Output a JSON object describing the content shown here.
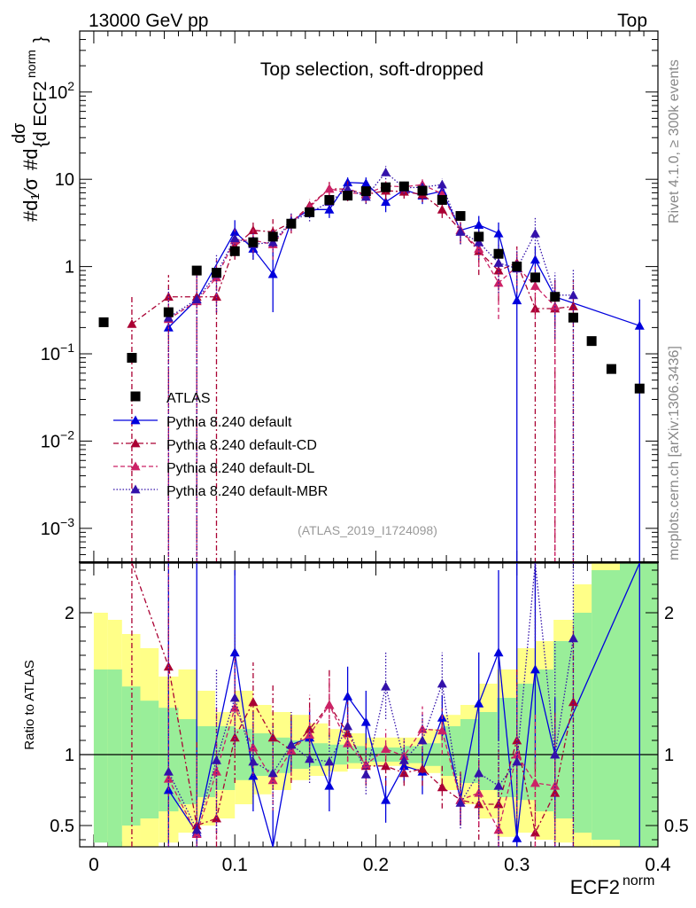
{
  "header": {
    "left": "13000 GeV pp",
    "right": "Top",
    "side_top": "Rivet 4.1.0, ≥ 300k events",
    "side_bottom": "mcplots.cern.ch [arXiv:1306.3436]"
  },
  "chart_data": {
    "type": "scatter",
    "title": "Top selection, soft-dropped",
    "watermark": "(ATLAS_2019_I1724098)",
    "xlabel_base": "ECF2",
    "xlabel_sup": "norm",
    "ylabel_frac": "#d₁∕σ",
    "ylabel_main": "#d",
    "ylabel_numer": "dσ",
    "ylabel_denom": "{d ECF2",
    "ylabel_sup": "norm",
    "ylabel_brace": "}",
    "ratio_ylabel": "Ratio to ATLAS",
    "xlim": [
      -0.01,
      0.4
    ],
    "ylim_main": [
      0.0004,
      500
    ],
    "ylim_ratio": [
      0.35,
      2.35
    ],
    "x_ticks": [
      "0",
      "0.1",
      "0.2",
      "0.3",
      "0.4"
    ],
    "x_tick_values": [
      0,
      0.1,
      0.2,
      0.3,
      0.4
    ],
    "y_ticks_main": [
      {
        "v": 0.001,
        "base": "10",
        "exp": "−3"
      },
      {
        "v": 0.01,
        "base": "10",
        "exp": "−2"
      },
      {
        "v": 0.1,
        "base": "10",
        "exp": "−1"
      },
      {
        "v": 1,
        "base": "1",
        "exp": ""
      },
      {
        "v": 10,
        "base": "10",
        "exp": ""
      },
      {
        "v": 100,
        "base": "10",
        "exp": "2"
      }
    ],
    "y_ticks_ratio": [
      {
        "v": 0.5,
        "label": "0.5"
      },
      {
        "v": 1,
        "label": "1"
      },
      {
        "v": 2,
        "label": "2"
      }
    ],
    "legend": [
      {
        "label": "ATLAS"
      },
      {
        "label": "Pythia 8.240 default"
      },
      {
        "label": "Pythia 8.240 default-CD"
      },
      {
        "label": "Pythia 8.240 default-DL"
      },
      {
        "label": "Pythia 8.240 default-MBR"
      }
    ],
    "band_edges": [
      0,
      0.01,
      0.02,
      0.033,
      0.046,
      0.06,
      0.073,
      0.086,
      0.1,
      0.113,
      0.126,
      0.14,
      0.153,
      0.166,
      0.18,
      0.193,
      0.206,
      0.22,
      0.233,
      0.246,
      0.26,
      0.273,
      0.286,
      0.3,
      0.313,
      0.326,
      0.34,
      0.353,
      0.373,
      0.4
    ],
    "band_yellow": [
      [
        0.4,
        2.0
      ],
      [
        0.35,
        1.95
      ],
      [
        0.35,
        1.85
      ],
      [
        0.35,
        1.75
      ],
      [
        0.38,
        1.55
      ],
      [
        0.45,
        1.6
      ],
      [
        0.5,
        1.45
      ],
      [
        0.55,
        1.3
      ],
      [
        0.65,
        1.45
      ],
      [
        0.72,
        1.35
      ],
      [
        0.75,
        1.3
      ],
      [
        0.82,
        1.28
      ],
      [
        0.85,
        1.22
      ],
      [
        0.88,
        1.18
      ],
      [
        0.9,
        1.15
      ],
      [
        0.92,
        1.12
      ],
      [
        0.92,
        1.12
      ],
      [
        0.9,
        1.12
      ],
      [
        0.87,
        1.18
      ],
      [
        0.75,
        1.28
      ],
      [
        0.65,
        1.35
      ],
      [
        0.55,
        1.5
      ],
      [
        0.42,
        1.6
      ],
      [
        0.45,
        1.75
      ],
      [
        0.4,
        1.8
      ],
      [
        0.38,
        1.95
      ],
      [
        0.35,
        2.2
      ],
      [
        0.35,
        2.35
      ],
      [
        0.35,
        2.35
      ]
    ],
    "band_green": [
      [
        0.38,
        1.6
      ],
      [
        0.35,
        1.6
      ],
      [
        0.5,
        1.48
      ],
      [
        0.55,
        1.38
      ],
      [
        0.6,
        1.33
      ],
      [
        0.65,
        1.25
      ],
      [
        0.7,
        1.2
      ],
      [
        0.75,
        1.2
      ],
      [
        0.82,
        1.18
      ],
      [
        0.85,
        1.15
      ],
      [
        0.87,
        1.12
      ],
      [
        0.9,
        1.1
      ],
      [
        0.92,
        1.08
      ],
      [
        0.93,
        1.07
      ],
      [
        0.94,
        1.06
      ],
      [
        0.95,
        1.05
      ],
      [
        0.95,
        1.05
      ],
      [
        0.94,
        1.06
      ],
      [
        0.92,
        1.08
      ],
      [
        0.85,
        1.2
      ],
      [
        0.8,
        1.25
      ],
      [
        0.75,
        1.3
      ],
      [
        0.7,
        1.4
      ],
      [
        0.68,
        1.5
      ],
      [
        0.6,
        1.6
      ],
      [
        0.55,
        1.8
      ],
      [
        0.45,
        2.0
      ],
      [
        0.4,
        2.3
      ],
      [
        0.35,
        2.35
      ]
    ],
    "atlas": {
      "name": "ATLAS",
      "x": [
        0.007,
        0.027,
        0.053,
        0.073,
        0.087,
        0.1,
        0.113,
        0.127,
        0.14,
        0.153,
        0.167,
        0.18,
        0.193,
        0.207,
        0.22,
        0.233,
        0.247,
        0.26,
        0.273,
        0.287,
        0.3,
        0.313,
        0.327,
        0.34,
        0.353,
        0.367,
        0.387
      ],
      "y": [
        0.23,
        0.09,
        0.3,
        0.9,
        0.85,
        1.5,
        1.9,
        2.2,
        3.1,
        4.2,
        5.8,
        6.5,
        7.3,
        8.1,
        8.3,
        7.4,
        5.8,
        3.8,
        2.2,
        1.4,
        1.0,
        0.75,
        0.45,
        0.26,
        0.14,
        0.067,
        0.04
      ]
    },
    "series": [
      {
        "name": "Pythia 8.240 default",
        "color": "#0000dd",
        "dash": "",
        "x": [
          0.053,
          0.073,
          0.1,
          0.113,
          0.127,
          0.14,
          0.153,
          0.167,
          0.18,
          0.193,
          0.207,
          0.22,
          0.233,
          0.247,
          0.26,
          0.273,
          0.287,
          0.3,
          0.313,
          0.327,
          0.387
        ],
        "y": [
          0.2,
          0.42,
          2.5,
          1.6,
          0.82,
          3.3,
          4.5,
          4.5,
          9.2,
          9.0,
          5.5,
          7.6,
          6.5,
          7.3,
          2.6,
          3.0,
          2.4,
          0.41,
          1.2,
          0.45,
          0.21
        ],
        "lo": [
          0.0004,
          0.0004,
          1.9,
          1.2,
          0.3,
          2.8,
          3.8,
          3.6,
          7.8,
          7.5,
          4.2,
          6.5,
          5.2,
          6.2,
          2.0,
          2.2,
          1.6,
          0.0004,
          0.7,
          0.2,
          0.0004
        ],
        "hi": [
          0.0004,
          0.0004,
          3.4,
          2.1,
          1.5,
          3.9,
          5.3,
          5.4,
          10.5,
          10.5,
          6.8,
          8.7,
          7.8,
          8.4,
          3.2,
          3.8,
          3.2,
          0.8,
          1.7,
          0.7,
          0.42
        ],
        "ratio": [
          0.75,
          0.45,
          1.72,
          0.85,
          0.3,
          1.07,
          1.12,
          0.78,
          1.41,
          1.23,
          0.68,
          0.92,
          0.88,
          1.26,
          0.68,
          1.36,
          1.72,
          0.41,
          1.6,
          1.0,
          5.2
        ],
        "ratio_lo": [
          0.35,
          0.35,
          1.35,
          0.6,
          0.35,
          0.88,
          0.92,
          0.6,
          1.2,
          1.02,
          0.52,
          0.8,
          0.72,
          1.1,
          0.5,
          1.0,
          1.1,
          0.35,
          0.9,
          0.6,
          0.35
        ],
        "ratio_hi": [
          2.35,
          2.35,
          2.3,
          1.1,
          0.6,
          1.25,
          1.32,
          0.96,
          1.62,
          1.45,
          0.85,
          1.05,
          1.05,
          1.42,
          0.86,
          1.72,
          2.3,
          2.35,
          2.35,
          1.4,
          2.35
        ]
      },
      {
        "name": "Pythia 8.240 default-CD",
        "color": "#aa0033",
        "dash": "6,3,2,3",
        "x": [
          0.027,
          0.053,
          0.073,
          0.087,
          0.1,
          0.113,
          0.127,
          0.14,
          0.153,
          0.167,
          0.18,
          0.193,
          0.207,
          0.22,
          0.233,
          0.247,
          0.26,
          0.273,
          0.287,
          0.3,
          0.313,
          0.327,
          0.34
        ],
        "y": [
          0.22,
          0.45,
          0.45,
          0.45,
          1.7,
          2.6,
          2.5,
          3.2,
          5.0,
          7.8,
          7.7,
          6.7,
          7.4,
          7.2,
          6.7,
          4.5,
          2.6,
          1.5,
          0.9,
          1.1,
          0.33,
          0.33,
          0.35
        ],
        "lo": [
          0.0004,
          0.0004,
          0.0004,
          0.0004,
          1.2,
          2.0,
          1.6,
          2.4,
          4.2,
          6.3,
          6.0,
          5.3,
          5.8,
          6.0,
          5.5,
          3.6,
          1.8,
          0.8,
          0.4,
          0.6,
          0.0004,
          0.0004,
          0.0004
        ],
        "hi": [
          0.45,
          0.8,
          0.9,
          0.9,
          2.3,
          3.3,
          3.5,
          4.1,
          5.9,
          9.3,
          9.5,
          8.2,
          9.0,
          8.5,
          8.0,
          5.5,
          3.4,
          2.4,
          1.5,
          1.7,
          0.7,
          0.7,
          0.7
        ],
        "ratio": [
          2.5,
          1.62,
          0.5,
          0.55,
          1.12,
          1.37,
          1.12,
          1.03,
          1.18,
          1.35,
          1.15,
          0.92,
          0.92,
          0.87,
          0.9,
          0.77,
          0.68,
          0.65,
          0.65,
          1.1,
          0.45,
          0.73,
          1.37
        ],
        "ratio_lo": [
          0.35,
          1.3,
          0.35,
          0.35,
          0.8,
          1.1,
          0.75,
          0.8,
          0.98,
          1.12,
          0.95,
          0.78,
          0.78,
          0.78,
          0.78,
          0.62,
          0.5,
          0.4,
          0.35,
          0.6,
          0.35,
          0.35,
          0.35
        ],
        "ratio_hi": [
          2.35,
          1.95,
          1.1,
          1.1,
          1.45,
          1.65,
          1.5,
          1.3,
          1.42,
          1.6,
          1.38,
          1.08,
          1.08,
          0.98,
          1.05,
          0.92,
          0.88,
          0.98,
          1.05,
          1.6,
          0.95,
          1.3,
          1.9
        ]
      },
      {
        "name": "Pythia 8.240 default-DL",
        "color": "#cc2266",
        "dash": "5,3",
        "x": [
          0.053,
          0.073,
          0.087,
          0.1,
          0.113,
          0.127,
          0.14,
          0.153,
          0.167,
          0.18,
          0.193,
          0.207,
          0.22,
          0.233,
          0.247,
          0.26,
          0.273,
          0.287,
          0.3,
          0.313,
          0.327
        ],
        "y": [
          0.25,
          0.4,
          0.75,
          2.0,
          2.0,
          1.8,
          3.2,
          4.8,
          7.8,
          7.0,
          6.8,
          8.4,
          8.2,
          8.7,
          6.8,
          2.6,
          1.6,
          0.65,
          1.0,
          0.6,
          0.35
        ],
        "lo": [
          0.0004,
          0.0004,
          0.3,
          1.4,
          1.4,
          1.2,
          2.5,
          4.0,
          6.3,
          5.6,
          5.5,
          7.0,
          7.0,
          7.4,
          5.7,
          1.9,
          1.0,
          0.25,
          0.5,
          0.25,
          0.0004
        ],
        "hi": [
          0.5,
          0.8,
          1.2,
          2.7,
          2.7,
          2.5,
          4.0,
          5.7,
          9.3,
          8.5,
          8.2,
          9.8,
          9.4,
          10.0,
          8.0,
          3.3,
          2.3,
          1.1,
          1.6,
          1.0,
          0.7
        ],
        "ratio": [
          0.83,
          0.44,
          0.88,
          1.33,
          1.05,
          0.82,
          1.03,
          1.14,
          1.35,
          1.08,
          0.93,
          1.04,
          0.99,
          1.18,
          1.17,
          0.68,
          0.73,
          0.47,
          1.0,
          0.8,
          0.78
        ],
        "ratio_lo": [
          0.35,
          0.35,
          0.4,
          1.0,
          0.85,
          0.6,
          0.85,
          0.95,
          1.15,
          0.9,
          0.8,
          0.92,
          0.88,
          1.02,
          1.0,
          0.52,
          0.5,
          0.35,
          0.55,
          0.35,
          0.35
        ],
        "ratio_hi": [
          2.35,
          1.0,
          1.35,
          1.7,
          1.28,
          1.05,
          1.22,
          1.34,
          1.56,
          1.28,
          1.07,
          1.18,
          1.1,
          1.34,
          1.34,
          0.86,
          0.96,
          0.75,
          1.5,
          1.3,
          1.3
        ]
      },
      {
        "name": "Pythia 8.240 default-MBR",
        "color": "#3311aa",
        "dash": "1.5,2",
        "x": [
          0.053,
          0.073,
          0.087,
          0.1,
          0.113,
          0.127,
          0.14,
          0.153,
          0.167,
          0.18,
          0.193,
          0.207,
          0.22,
          0.233,
          0.247,
          0.26,
          0.273,
          0.287,
          0.3,
          0.313,
          0.327,
          0.34
        ],
        "y": [
          0.26,
          0.42,
          0.82,
          2.1,
          1.8,
          1.9,
          3.3,
          4.1,
          5.5,
          7.8,
          6.3,
          12.0,
          8.0,
          8.1,
          8.7,
          2.5,
          1.9,
          1.1,
          0.95,
          2.4,
          0.47,
          0.47
        ],
        "lo": [
          0.0004,
          0.0004,
          0.3,
          1.5,
          1.2,
          1.3,
          2.6,
          3.3,
          4.6,
          6.6,
          5.2,
          10.0,
          6.8,
          6.8,
          7.3,
          1.8,
          1.2,
          0.5,
          0.5,
          1.3,
          0.15,
          0.0004
        ],
        "hi": [
          0.55,
          0.85,
          1.35,
          2.8,
          2.5,
          2.6,
          4.1,
          5.0,
          6.5,
          9.2,
          7.5,
          14.2,
          9.4,
          9.5,
          10.2,
          3.2,
          2.7,
          1.8,
          1.5,
          3.6,
          0.85,
          0.95
        ],
        "ratio": [
          0.88,
          0.47,
          0.96,
          1.4,
          0.95,
          0.87,
          1.07,
          0.97,
          0.95,
          1.2,
          0.86,
          1.48,
          0.96,
          1.1,
          1.5,
          0.66,
          0.87,
          0.78,
          0.95,
          3.2,
          1.0,
          1.82
        ],
        "ratio_lo": [
          0.35,
          0.35,
          0.45,
          1.05,
          0.7,
          0.6,
          0.88,
          0.8,
          0.8,
          1.02,
          0.72,
          1.25,
          0.82,
          0.92,
          1.3,
          0.48,
          0.55,
          0.35,
          0.5,
          1.8,
          0.35,
          0.35
        ],
        "ratio_hi": [
          2.35,
          1.0,
          1.6,
          1.85,
          1.3,
          1.2,
          1.3,
          1.2,
          1.15,
          1.42,
          1.02,
          1.72,
          1.12,
          1.28,
          1.72,
          0.86,
          1.22,
          1.25,
          1.58,
          2.35,
          1.8,
          2.35
        ]
      }
    ]
  }
}
